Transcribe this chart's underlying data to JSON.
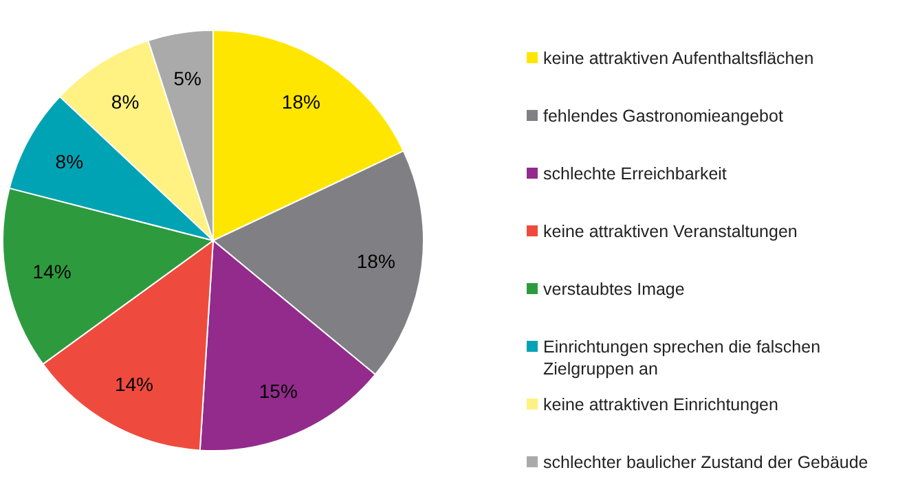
{
  "chart_data": {
    "type": "pie",
    "categories": [
      "keine attraktiven Aufenthaltsflächen",
      "fehlendes Gastronomieangebot",
      "schlechte Erreichbarkeit",
      "keine attraktiven Veranstaltungen",
      "verstaubtes Image",
      "Einrichtungen sprechen die falschen Zielgruppen an",
      "keine attraktiven Einrichtungen",
      "schlechter baulicher Zustand der Gebäude"
    ],
    "values": [
      18,
      18,
      15,
      14,
      14,
      8,
      8,
      5
    ],
    "colors": [
      "#ffe600",
      "#807f83",
      "#922b8c",
      "#ee4b3e",
      "#2e9a3e",
      "#00a3b4",
      "#fff182",
      "#aaaaaa"
    ],
    "value_labels": [
      "18%",
      "18%",
      "15%",
      "14%",
      "14%",
      "8%",
      "8%",
      "5%"
    ],
    "legend": "right"
  }
}
